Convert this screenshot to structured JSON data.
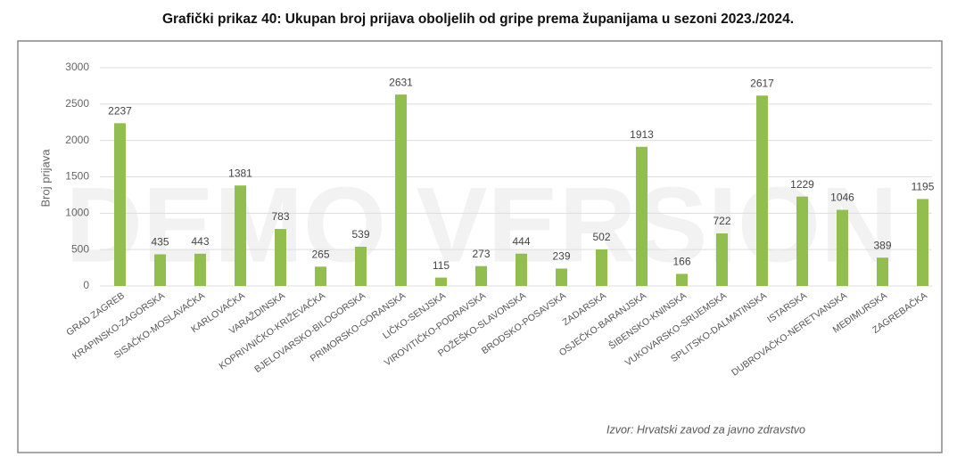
{
  "chart_data": {
    "type": "bar",
    "title": "Grafički prikaz 40: Ukupan broj prijava oboljelih od gripe prema županijama u sezoni 2023./2024.",
    "y_label": "Broj prijava",
    "source": "Izvor: Hrvatski zavod za javno zdravstvo",
    "watermark": "DEMO VERSION",
    "categories": [
      "GRAD ZAGREB",
      "KRAPINSKO-ZAGORSKA",
      "SISAČKO-MOSLAVAČKA",
      "KARLOVAČKA",
      "VARAŽDINSKA",
      "KOPRIVNIČKO-KRIŽEVAČKA",
      "BJELOVARSKO-BILOGORSKA",
      "PRIMORSKO-GORANSKA",
      "LIČKO-SENJSKA",
      "VIROVITIČKO-PODRAVSKA",
      "POŽEŠKO-SLAVONSKA",
      "BRODSKO-POSAVSKA",
      "ZADARSKA",
      "OSJEČKO-BARANJSKA",
      "ŠIBENSKO-KNINSKA",
      "VUKOVARSKO-SRIJEMSKA",
      "SPLITSKO-DALMATINSKA",
      "ISTARSKA",
      "DUBROVAČKO-NERETVANSKA",
      "MEĐIMURSKA",
      "ZAGREBAČKA"
    ],
    "values": [
      2237,
      435,
      443,
      1381,
      783,
      265,
      539,
      2631,
      115,
      273,
      444,
      239,
      502,
      1913,
      166,
      722,
      2617,
      1229,
      1046,
      389,
      1195
    ],
    "color": "#92bd4f",
    "ylim": [
      0,
      3000
    ],
    "yticks": [
      0,
      500,
      1000,
      1500,
      2000,
      2500,
      3000
    ],
    "grid": true
  }
}
